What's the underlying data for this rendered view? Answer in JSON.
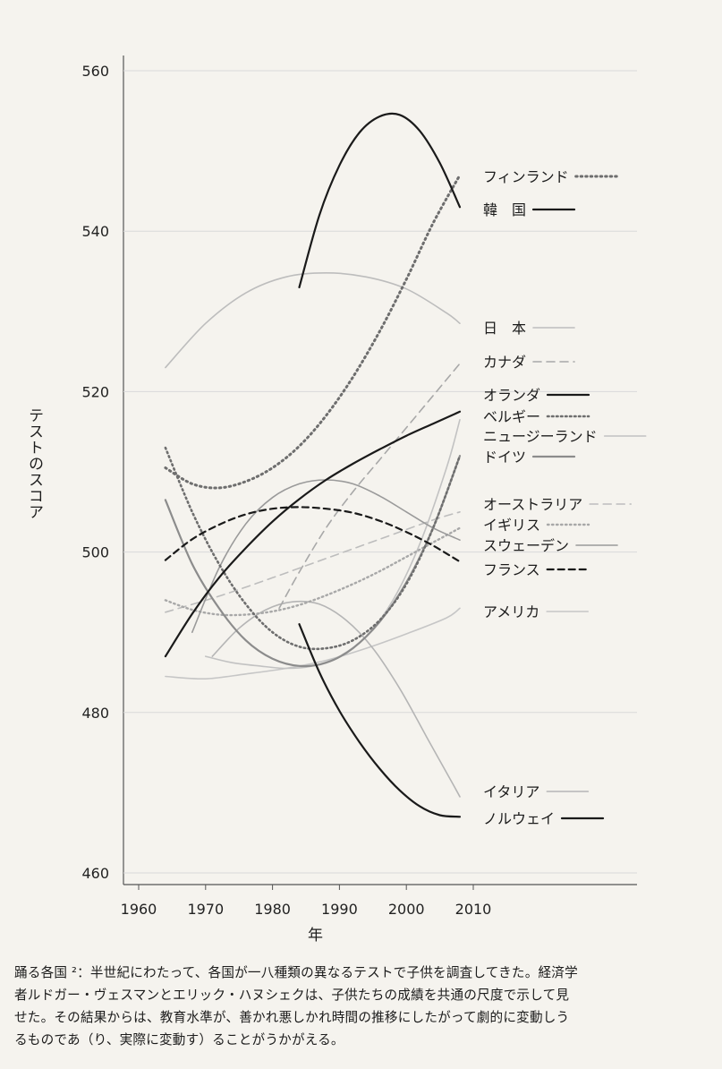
{
  "chart_data": {
    "type": "line",
    "title": "",
    "xlabel": "年",
    "ylabel": "テストのスコア",
    "xlim": [
      1955,
      2030
    ],
    "ylim": [
      458,
      562
    ],
    "xticks": [
      1960,
      1970,
      1980,
      1990,
      2000,
      2010
    ],
    "yticks": [
      460,
      480,
      500,
      520,
      540,
      560
    ],
    "grid": true,
    "legend_placement": "right",
    "series": [
      {
        "name": "フィンランド",
        "color": "#6e6e6e",
        "width": 3,
        "dash": "1.5,4",
        "x": [
          1964,
          1968,
          1972,
          1976,
          1980,
          1984,
          1988,
          1992,
          1996,
          2000,
          2004,
          2008
        ],
        "y": [
          510.5,
          508.5,
          508.0,
          508.8,
          510.5,
          513.2,
          517.0,
          521.8,
          527.5,
          534.0,
          541.0,
          547.0
        ]
      },
      {
        "name": "韓　国",
        "color": "#1a1a1a",
        "width": 2.2,
        "dash": "",
        "x": [
          1984,
          1987,
          1990,
          1993,
          1996,
          1999,
          2002,
          2005,
          2008
        ],
        "y": [
          533.0,
          542.0,
          548.2,
          552.3,
          554.3,
          554.5,
          552.5,
          548.5,
          543.0
        ]
      },
      {
        "name": "日　本",
        "color": "#bdbdbd",
        "width": 1.6,
        "dash": "",
        "x": [
          1964,
          1970,
          1976,
          1982,
          1988,
          1994,
          2000,
          2006,
          2008
        ],
        "y": [
          523.0,
          528.5,
          532.3,
          534.3,
          534.8,
          534.3,
          532.8,
          529.8,
          528.5
        ]
      },
      {
        "name": "カナダ",
        "color": "#a8a8a8",
        "width": 1.6,
        "dash": "9,6",
        "x": [
          1981,
          1984,
          1988,
          1992,
          1996,
          2000,
          2004,
          2008
        ],
        "y": [
          493.0,
          497.5,
          503.0,
          507.5,
          511.5,
          515.5,
          519.5,
          523.5
        ]
      },
      {
        "name": "オランダ",
        "color": "#1a1a1a",
        "width": 2.2,
        "dash": "",
        "x": [
          1964,
          1968,
          1972,
          1976,
          1980,
          1984,
          1988,
          1992,
          1996,
          2000,
          2004,
          2008
        ],
        "y": [
          487.0,
          492.3,
          496.8,
          500.5,
          503.8,
          506.6,
          509.0,
          511.0,
          512.8,
          514.5,
          516.0,
          517.5
        ]
      },
      {
        "name": "ベルギー",
        "color": "#6e6e6e",
        "width": 2.6,
        "dash": "1.5,3.5",
        "x": [
          1964,
          1968,
          1972,
          1976,
          1980,
          1984,
          1988,
          1992,
          1996,
          2000,
          2004,
          2008
        ],
        "y": [
          513.0,
          505.0,
          498.5,
          493.5,
          490.0,
          488.2,
          488.0,
          489.0,
          491.5,
          496.0,
          503.0,
          512.0
        ]
      },
      {
        "name": "ニュージーランド",
        "color": "#c2c2c2",
        "width": 1.6,
        "dash": "",
        "x": [
          1970,
          1974,
          1978,
          1982,
          1986,
          1990,
          1994,
          1998,
          2002,
          2006,
          2008
        ],
        "y": [
          487.0,
          486.2,
          485.8,
          485.5,
          485.8,
          487.0,
          489.5,
          494.0,
          501.0,
          510.5,
          516.5
        ]
      },
      {
        "name": "ドイツ",
        "color": "#8c8c8c",
        "width": 2.2,
        "dash": "",
        "x": [
          1964,
          1968,
          1972,
          1976,
          1980,
          1984,
          1988,
          1992,
          1996,
          2000,
          2004,
          2008
        ],
        "y": [
          506.5,
          498.5,
          493.0,
          489.0,
          486.7,
          485.8,
          486.2,
          488.0,
          491.3,
          496.2,
          503.0,
          512.0
        ]
      },
      {
        "name": "オーストラリア",
        "color": "#bdbdbd",
        "width": 1.6,
        "dash": "9,6",
        "x": [
          1964,
          1972,
          1980,
          1988,
          1996,
          2004,
          2008
        ],
        "y": [
          492.5,
          494.5,
          496.8,
          499.2,
          501.6,
          504.0,
          505.0
        ]
      },
      {
        "name": "イギリス",
        "color": "#a8a8a8",
        "width": 2.4,
        "dash": "1.5,3.5",
        "x": [
          1964,
          1968,
          1972,
          1976,
          1980,
          1984,
          1988,
          1992,
          1996,
          2000,
          2004,
          2008
        ],
        "y": [
          494.0,
          492.8,
          492.2,
          492.2,
          492.6,
          493.4,
          494.6,
          496.0,
          497.6,
          499.4,
          501.2,
          503.0
        ]
      },
      {
        "name": "スウェーデン",
        "color": "#9a9a9a",
        "width": 1.6,
        "dash": "",
        "x": [
          1968,
          1972,
          1976,
          1980,
          1984,
          1988,
          1992,
          1996,
          2000,
          2004,
          2008
        ],
        "y": [
          490.0,
          498.0,
          503.5,
          506.8,
          508.5,
          509.0,
          508.5,
          507.0,
          505.0,
          503.0,
          501.5
        ]
      },
      {
        "name": "フランス",
        "color": "#1a1a1a",
        "width": 2.2,
        "dash": "7,5",
        "x": [
          1964,
          1968,
          1972,
          1976,
          1980,
          1984,
          1988,
          1992,
          1996,
          2000,
          2004,
          2008
        ],
        "y": [
          499.0,
          501.6,
          503.4,
          504.7,
          505.4,
          505.6,
          505.4,
          504.9,
          503.9,
          502.5,
          500.8,
          498.8
        ]
      },
      {
        "name": "アメリカ",
        "color": "#c6c6c6",
        "width": 1.6,
        "dash": "",
        "x": [
          1964,
          1970,
          1976,
          1982,
          1988,
          1994,
          2000,
          2006,
          2008
        ],
        "y": [
          484.5,
          484.2,
          484.8,
          485.5,
          486.5,
          488.0,
          489.8,
          491.8,
          493.0
        ]
      },
      {
        "name": "イタリア",
        "color": "#b5b5b5",
        "width": 1.6,
        "dash": "",
        "x": [
          1971,
          1975,
          1979,
          1983,
          1987,
          1991,
          1995,
          1999,
          2003,
          2007,
          2008
        ],
        "y": [
          487.0,
          490.5,
          492.8,
          493.8,
          493.5,
          491.5,
          488.0,
          483.0,
          477.0,
          471.0,
          469.5
        ]
      },
      {
        "name": "ノルウェイ",
        "color": "#1a1a1a",
        "width": 2.2,
        "dash": "",
        "x": [
          1984,
          1987,
          1990,
          1993,
          1996,
          1999,
          2002,
          2005,
          2008
        ],
        "y": [
          491.0,
          485.0,
          480.2,
          476.3,
          473.0,
          470.3,
          468.3,
          467.2,
          467.0
        ]
      }
    ]
  },
  "caption": {
    "line1": "踊る各国 ²：半世紀にわたって、各国が一八種類の異なるテストで子供を調査してきた。経済学",
    "line2": "者ルドガー・ヴェスマンとエリック・ハヌシェクは、子供たちの成績を共通の尺度で示して見",
    "line3": "せた。その結果からは、教育水準が、善かれ悪しかれ時間の推移にしたがって劇的に変動しう",
    "line4": "るものであ（り、実際に変動す）ることがうかがえる。"
  }
}
